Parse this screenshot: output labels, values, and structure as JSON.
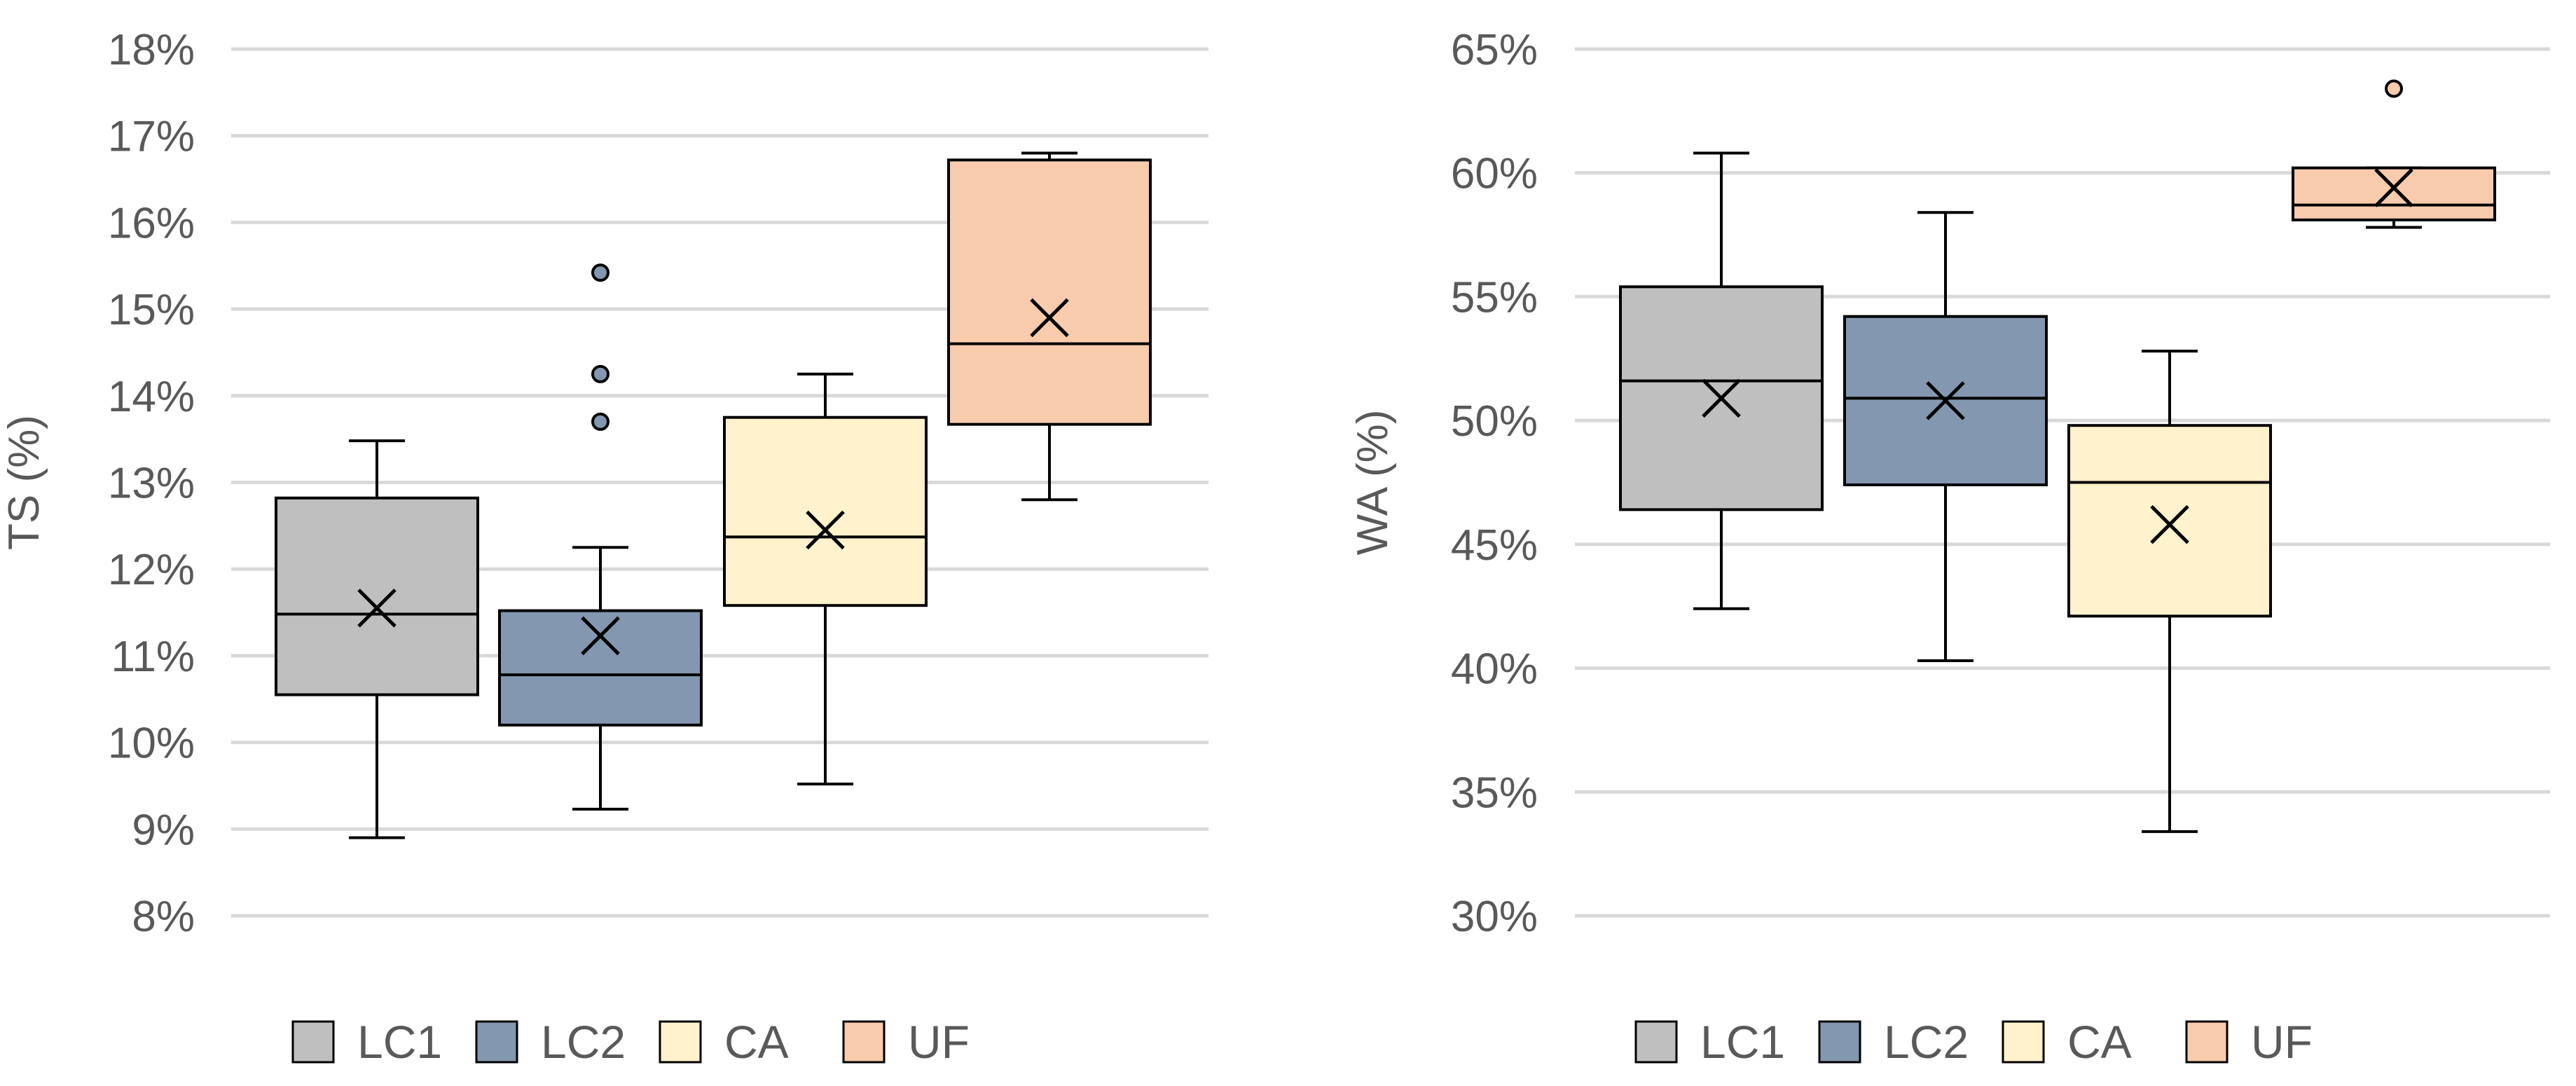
{
  "chart_data": [
    {
      "type": "boxplot",
      "title": "",
      "xlabel": "",
      "ylabel": "TS (%)",
      "ylim": [
        8,
        18
      ],
      "y_ticks": [
        8,
        9,
        10,
        11,
        12,
        13,
        14,
        15,
        16,
        17,
        18
      ],
      "y_tick_labels": [
        "8%",
        "9%",
        "10%",
        "11%",
        "12%",
        "13%",
        "14%",
        "15%",
        "16%",
        "17%",
        "18%"
      ],
      "grid": true,
      "legend_position": "bottom",
      "series": [
        {
          "name": "LC1",
          "min": 8.9,
          "q1": 10.55,
          "median": 11.48,
          "q3": 12.82,
          "max": 13.48,
          "mean": 11.55,
          "outliers": []
        },
        {
          "name": "LC2",
          "min": 9.23,
          "q1": 10.2,
          "median": 10.78,
          "q3": 11.52,
          "max": 12.25,
          "mean": 11.23,
          "outliers": [
            13.7,
            14.25,
            15.42
          ]
        },
        {
          "name": "CA",
          "min": 9.52,
          "q1": 11.58,
          "median": 12.37,
          "q3": 13.75,
          "max": 14.25,
          "mean": 12.45,
          "outliers": []
        },
        {
          "name": "UF",
          "min": 12.8,
          "q1": 13.67,
          "median": 14.6,
          "q3": 16.72,
          "max": 16.8,
          "mean": 14.9,
          "outliers": []
        }
      ]
    },
    {
      "type": "boxplot",
      "title": "",
      "xlabel": "",
      "ylabel": "WA (%)",
      "ylim": [
        30,
        65
      ],
      "y_ticks": [
        30,
        35,
        40,
        45,
        50,
        55,
        60,
        65
      ],
      "y_tick_labels": [
        "30%",
        "35%",
        "40%",
        "45%",
        "50%",
        "55%",
        "60%",
        "65%"
      ],
      "grid": true,
      "legend_position": "bottom",
      "series": [
        {
          "name": "LC1",
          "min": 42.4,
          "q1": 46.4,
          "median": 51.6,
          "q3": 55.4,
          "max": 60.8,
          "mean": 50.9,
          "outliers": []
        },
        {
          "name": "LC2",
          "min": 40.3,
          "q1": 47.4,
          "median": 50.9,
          "q3": 54.2,
          "max": 58.4,
          "mean": 50.8,
          "outliers": []
        },
        {
          "name": "CA",
          "min": 33.4,
          "q1": 42.1,
          "median": 47.5,
          "q3": 49.8,
          "max": 52.8,
          "mean": 45.8,
          "outliers": []
        },
        {
          "name": "UF",
          "min": 57.8,
          "q1": 58.1,
          "median": 58.7,
          "q3": 60.2,
          "max": 60.2,
          "mean": 59.4,
          "outliers": [
            63.4
          ]
        }
      ]
    }
  ],
  "colors": {
    "LC1": "#bfbfbf",
    "LC2": "#8497b0",
    "CA": "#fff2cc",
    "UF": "#f8cbad",
    "grid": "#d9d9d9",
    "stroke": "#000000",
    "text": "#595959"
  }
}
